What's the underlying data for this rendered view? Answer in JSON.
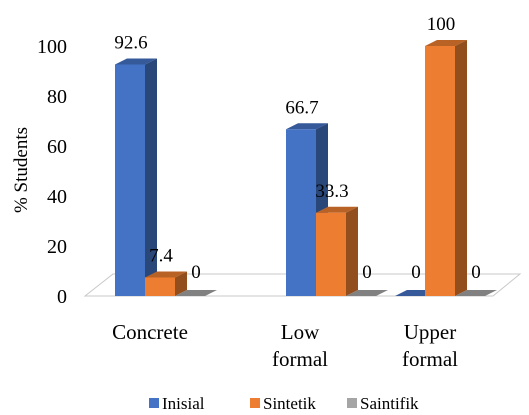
{
  "chart_data": {
    "type": "bar",
    "categories": [
      [
        "Concrete"
      ],
      [
        "Low",
        "formal"
      ],
      [
        "Upper",
        "formal"
      ]
    ],
    "series": [
      {
        "name": "Inisial",
        "values": [
          92.6,
          66.7,
          0
        ],
        "labels": [
          "92.6",
          "66.7",
          "0"
        ],
        "color": "#4472C4"
      },
      {
        "name": "Sintetik",
        "values": [
          7.4,
          33.3,
          100
        ],
        "labels": [
          "7.4",
          "33.3",
          "100"
        ],
        "color": "#ED7D31"
      },
      {
        "name": "Saintifik",
        "values": [
          0,
          0,
          0
        ],
        "labels": [
          "0",
          "0",
          "0"
        ],
        "color": "#A5A5A5"
      }
    ],
    "ylabel": "% Students",
    "ylim": [
      0,
      100
    ],
    "yticks": [
      "0",
      "20",
      "40",
      "60",
      "80",
      "100"
    ],
    "legend": "bottom",
    "style": "3d-clustered-column"
  }
}
